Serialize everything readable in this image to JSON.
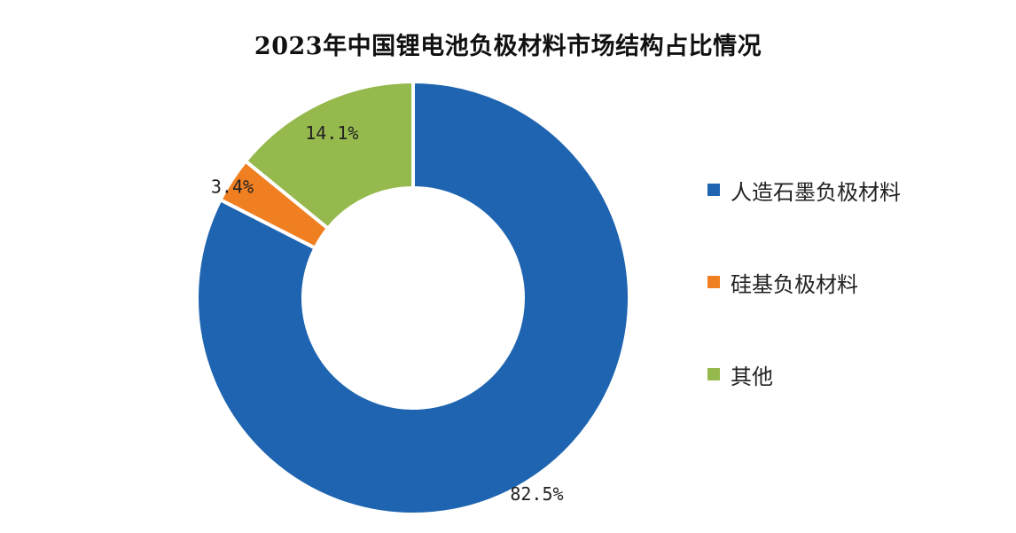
{
  "chart_data": {
    "type": "pie",
    "title": "2023年中国锂电池负极材料市场结构占比情况",
    "series": [
      {
        "name": "人造石墨负极材料",
        "value": 82.5,
        "label": "82.5%",
        "color": "#1f64b0"
      },
      {
        "name": "硅基负极材料",
        "value": 3.4,
        "label": "3.4%",
        "color": "#f07f21"
      },
      {
        "name": "其他",
        "value": 14.1,
        "label": "14.1%",
        "color": "#95b94c"
      }
    ],
    "unit": "%",
    "legend_position": "right"
  }
}
